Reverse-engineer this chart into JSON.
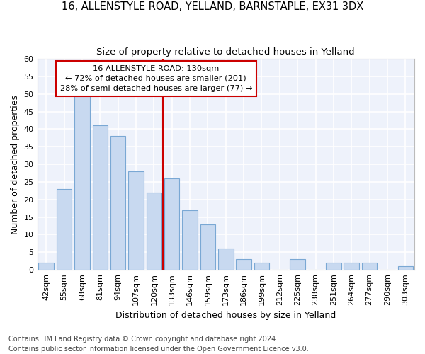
{
  "title1": "16, ALLENSTYLE ROAD, YELLAND, BARNSTAPLE, EX31 3DX",
  "title2": "Size of property relative to detached houses in Yelland",
  "xlabel": "Distribution of detached houses by size in Yelland",
  "ylabel": "Number of detached properties",
  "categories": [
    "42sqm",
    "55sqm",
    "68sqm",
    "81sqm",
    "94sqm",
    "107sqm",
    "120sqm",
    "133sqm",
    "146sqm",
    "159sqm",
    "173sqm",
    "186sqm",
    "199sqm",
    "212sqm",
    "225sqm",
    "238sqm",
    "251sqm",
    "264sqm",
    "277sqm",
    "290sqm",
    "303sqm"
  ],
  "values": [
    2,
    23,
    50,
    41,
    38,
    28,
    22,
    26,
    17,
    13,
    6,
    3,
    2,
    0,
    3,
    0,
    2,
    2,
    2,
    0,
    1
  ],
  "bar_color": "#c8d9f0",
  "bar_edge_color": "#7aa8d4",
  "vline_index": 7,
  "vline_color": "#cc0000",
  "annotation_text": "16 ALLENSTYLE ROAD: 130sqm\n← 72% of detached houses are smaller (201)\n28% of semi-detached houses are larger (77) →",
  "annotation_box_color": "white",
  "annotation_box_edge": "#cc0000",
  "ylim": [
    0,
    60
  ],
  "yticks": [
    0,
    5,
    10,
    15,
    20,
    25,
    30,
    35,
    40,
    45,
    50,
    55,
    60
  ],
  "background_color": "#eef2fb",
  "grid_color": "white",
  "footer1": "Contains HM Land Registry data © Crown copyright and database right 2024.",
  "footer2": "Contains public sector information licensed under the Open Government Licence v3.0.",
  "title1_fontsize": 10.5,
  "title2_fontsize": 9.5,
  "tick_fontsize": 8,
  "ylabel_fontsize": 9,
  "xlabel_fontsize": 9,
  "footer_fontsize": 7
}
